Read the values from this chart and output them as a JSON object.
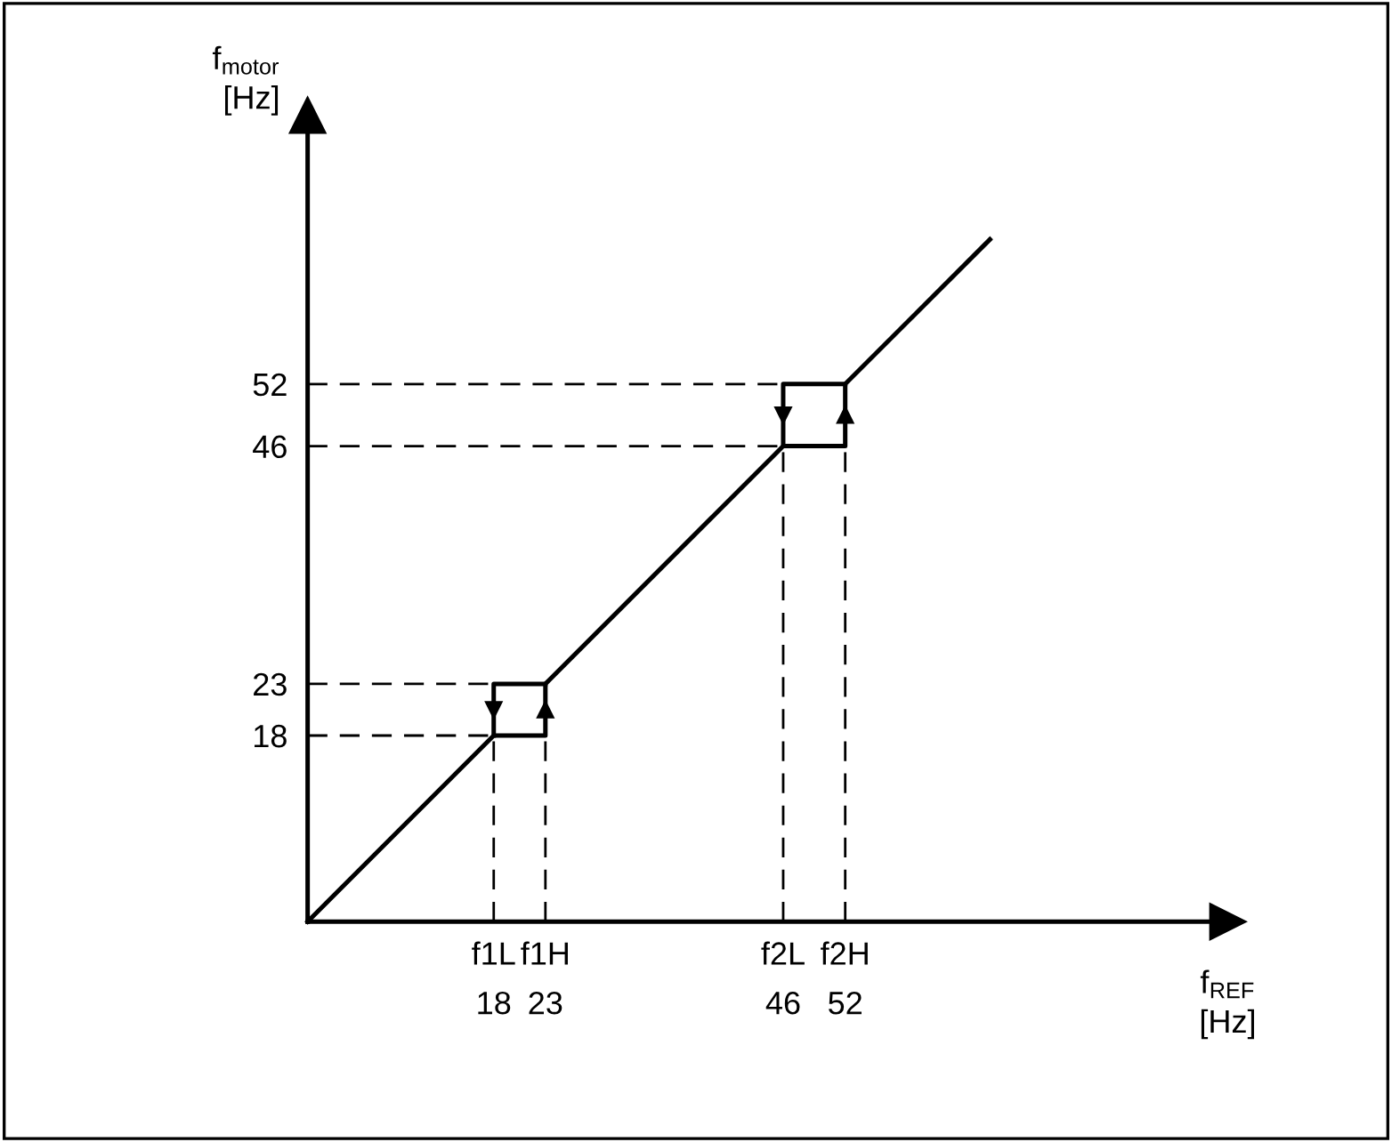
{
  "chart_data": {
    "type": "line",
    "xlabel": "f$_{REF}$\n[Hz]",
    "ylabel": "f$_{motor}$\n[Hz]",
    "xlim": [
      0,
      89
    ],
    "ylim": [
      0,
      78
    ],
    "xticks": [
      18,
      23,
      46,
      52
    ],
    "annotations": [
      {
        "text": "f1L",
        "x": 18,
        "y": 0
      },
      {
        "text": "f1H",
        "x": 23,
        "y": 0
      },
      {
        "text": "f2L",
        "x": 46,
        "y": 0
      },
      {
        "text": "f2H",
        "x": 52,
        "y": 0
      }
    ],
    "yticks": [
      18,
      23,
      46,
      52
    ],
    "grid": false,
    "legend": false,
    "marker": "none",
    "series": [
      {
        "color": "#000000",
        "line_style": "solid",
        "x": [
          0,
          18,
          23,
          23,
          46,
          52,
          52,
          66
        ],
        "values": [
          0,
          18,
          18,
          23,
          46,
          46,
          52,
          66
        ]
      },
      {
        "color": "#000000",
        "line_style": "solid",
        "x": [
          23,
          18,
          18
        ],
        "values": [
          23,
          23,
          18
        ]
      },
      {
        "color": "#000000",
        "line_style": "solid",
        "x": [
          52,
          46,
          46
        ],
        "values": [
          52,
          52,
          46
        ]
      },
      {
        "color": "#000000",
        "line_style": "dashed",
        "x": [
          0,
          18
        ],
        "values": [
          18,
          18
        ]
      },
      {
        "color": "#000000",
        "line_style": "dashed",
        "x": [
          0,
          23
        ],
        "values": [
          23,
          23
        ]
      },
      {
        "color": "#000000",
        "line_style": "dashed",
        "x": [
          0,
          46
        ],
        "values": [
          46,
          46
        ]
      },
      {
        "color": "#000000",
        "line_style": "dashed",
        "x": [
          0,
          52
        ],
        "values": [
          52,
          52
        ]
      },
      {
        "color": "#000000",
        "line_style": "dashed",
        "x": [
          18,
          18
        ],
        "values": [
          0,
          18
        ]
      },
      {
        "color": "#000000",
        "line_style": "dashed",
        "x": [
          23,
          23
        ],
        "values": [
          0,
          18
        ]
      },
      {
        "color": "#000000",
        "line_style": "dashed",
        "x": [
          46,
          46
        ],
        "values": [
          0,
          46
        ]
      },
      {
        "color": "#000000",
        "line_style": "dashed",
        "x": [
          52,
          52
        ],
        "values": [
          0,
          46
        ]
      }
    ]
  }
}
